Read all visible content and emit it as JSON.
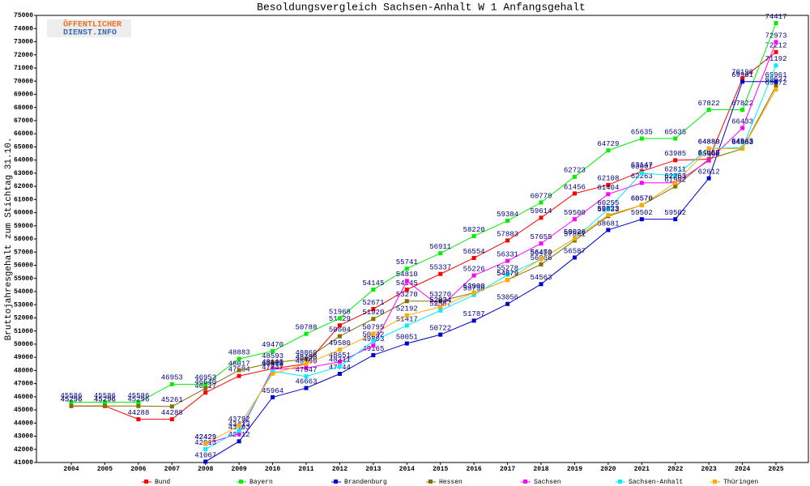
{
  "logo": {
    "line1": "ÖFFENTLICHER",
    "line2": "DIENST.INFO"
  },
  "chart_data": {
    "type": "line",
    "title": "Besoldungsvergleich Sachsen-Anhalt W 1 Anfangsgehalt",
    "y_label": "Bruttojahresgehalt zum Stichtag 31.10.",
    "categories": [
      "2004",
      "2005",
      "2006",
      "2007",
      "2008",
      "2009",
      "2010",
      "2011",
      "2012",
      "2013",
      "2014",
      "2015",
      "2016",
      "2017",
      "2018",
      "2019",
      "2020",
      "2021",
      "2022",
      "2023",
      "2024",
      "2025"
    ],
    "ylim": [
      41000,
      75000
    ],
    "yticks": [
      41000,
      42000,
      43000,
      44000,
      45000,
      46000,
      47000,
      48000,
      49000,
      50000,
      51000,
      52000,
      53000,
      54000,
      55000,
      56000,
      57000,
      58000,
      59000,
      60000,
      61000,
      62000,
      63000,
      64000,
      65000,
      66000,
      67000,
      68000,
      69000,
      70000,
      71000,
      72000,
      73000,
      74000,
      75000
    ],
    "grid": false,
    "series": [
      {
        "name": "Bund",
        "color": "#ff0000",
        "values": [
          45296,
          45296,
          44288,
          44288,
          46317,
          47584,
          48140,
          48498,
          51429,
          52671,
          54145,
          55337,
          56554,
          57883,
          59614,
          61456,
          62108,
          63147,
          63985,
          64068,
          70196,
          72212
        ]
      },
      {
        "name": "Bayern",
        "color": "#00ee00",
        "values": [
          45586,
          45586,
          45586,
          46953,
          46953,
          48883,
          49470,
          50788,
          51968,
          54145,
          55741,
          56911,
          58220,
          59384,
          60779,
          62723,
          64729,
          65635,
          65635,
          67822,
          67822,
          74417
        ]
      },
      {
        "name": "Brandenburg",
        "color": "#0000cc",
        "values": [
          null,
          null,
          null,
          null,
          41067,
          42612,
          45964,
          46663,
          47744,
          49165,
          50051,
          50722,
          51787,
          53056,
          54563,
          56587,
          58681,
          59502,
          59502,
          62612,
          69961,
          69961
        ]
      },
      {
        "name": "Hessen",
        "color": "#807000",
        "values": [
          45296,
          45296,
          45296,
          45261,
          46640,
          48017,
          48593,
          48860,
          50604,
          51920,
          53270,
          53270,
          53908,
          54879,
          56066,
          57881,
          59733,
          60570,
          61992,
          64068,
          64863,
          69627
        ]
      },
      {
        "name": "Sachsen",
        "color": "#ff00ff",
        "values": [
          null,
          null,
          null,
          null,
          42429,
          43193,
          48101,
          48190,
          48651,
          49893,
          54810,
          52834,
          55226,
          56331,
          57655,
          59500,
          61404,
          62263,
          62263,
          63960,
          66433,
          72973
        ]
      },
      {
        "name": "Sachsen-Anhalt",
        "color": "#00eeff",
        "values": [
          null,
          null,
          null,
          null,
          42013,
          43413,
          47940,
          47547,
          48311,
          50242,
          51417,
          52557,
          53738,
          55278,
          56450,
          58026,
          60255,
          63007,
          62811,
          64880,
          64943,
          71192
        ]
      },
      {
        "name": "Thüringen",
        "color": "#ffaa00",
        "values": [
          null,
          null,
          null,
          null,
          42429,
          43792,
          47747,
          48498,
          49580,
          50795,
          52192,
          52834,
          53908,
          54879,
          56470,
          58026,
          59823,
          60570,
          62263,
          64880,
          64863,
          69372
        ]
      }
    ]
  }
}
